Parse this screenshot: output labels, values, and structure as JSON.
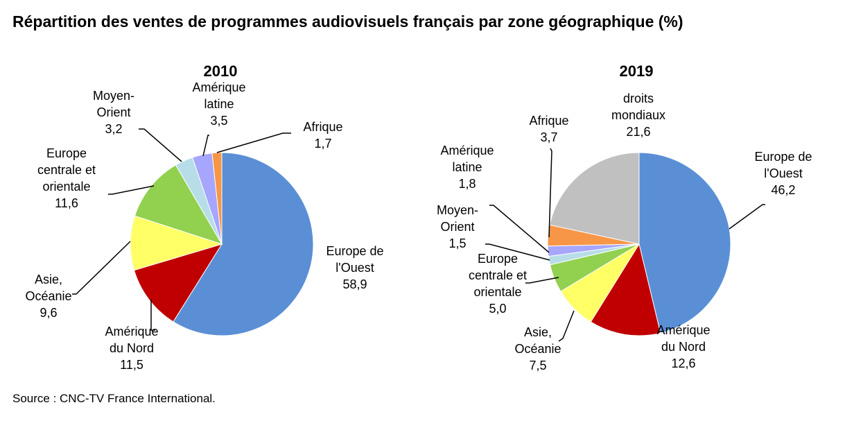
{
  "title": "Répartition des ventes de programmes audiovisuels français par zone géographique (%)",
  "source": "Source : CNC-TV France International.",
  "chart_data": [
    {
      "type": "pie",
      "title": "2010",
      "slices": [
        {
          "label": [
            "Europe de",
            "l'Ouest",
            "58,9"
          ],
          "value": 58.9,
          "color": "#5a8fd6"
        },
        {
          "label": [
            "Amérique",
            "du Nord",
            "11,5"
          ],
          "value": 11.5,
          "color": "#c00000"
        },
        {
          "label": [
            "Asie,",
            "Océanie",
            "9,6"
          ],
          "value": 9.6,
          "color": "#ffff66"
        },
        {
          "label": [
            "Europe",
            "centrale et",
            "orientale",
            "11,6"
          ],
          "value": 11.6,
          "color": "#92d050"
        },
        {
          "label": [
            "Moyen-",
            "Orient",
            "3,2"
          ],
          "value": 3.2,
          "color": "#b7dde8"
        },
        {
          "label": [
            "Amérique",
            "latine",
            "3,5"
          ],
          "value": 3.5,
          "color": "#a6a6ff"
        },
        {
          "label": [
            "Afrique",
            "1,7"
          ],
          "value": 1.7,
          "color": "#f79646"
        }
      ]
    },
    {
      "type": "pie",
      "title": "2019",
      "slices": [
        {
          "label": [
            "Europe de",
            "l'Ouest",
            "46,2"
          ],
          "value": 46.2,
          "color": "#5a8fd6"
        },
        {
          "label": [
            "Amérique",
            "du Nord",
            "12,6"
          ],
          "value": 12.6,
          "color": "#c00000"
        },
        {
          "label": [
            "Asie,",
            "Océanie",
            "7,5"
          ],
          "value": 7.5,
          "color": "#ffff66"
        },
        {
          "label": [
            "Europe",
            "centrale et",
            "orientale",
            "5,0"
          ],
          "value": 5.0,
          "color": "#92d050"
        },
        {
          "label": [
            "Moyen-",
            "Orient",
            "1,5"
          ],
          "value": 1.5,
          "color": "#b7dde8"
        },
        {
          "label": [
            "Amérique",
            "latine",
            "1,8"
          ],
          "value": 1.8,
          "color": "#a6a6ff"
        },
        {
          "label": [
            "Afrique",
            "3,7"
          ],
          "value": 3.7,
          "color": "#f79646"
        },
        {
          "label": [
            "droits",
            "mondiaux",
            "21,6"
          ],
          "value": 21.6,
          "color": "#c0c0c0"
        }
      ]
    }
  ]
}
